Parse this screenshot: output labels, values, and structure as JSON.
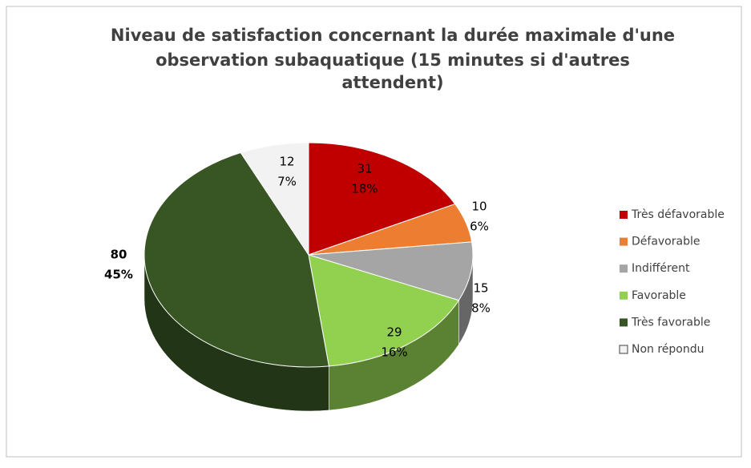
{
  "chart_data": {
    "type": "pie3d",
    "title": [
      "Niveau de satisfaction concernant la durée maximale d'une",
      "observation subaquatique (15 minutes si d'autres",
      "attendent)"
    ],
    "categories": [
      "Très défavorable",
      "Défavorable",
      "Indifférent",
      "Favorable",
      "Très favorable",
      "Non répondu"
    ],
    "values": [
      31,
      10,
      15,
      29,
      80,
      12
    ],
    "percentages": [
      18,
      6,
      8,
      16,
      45,
      7
    ],
    "percentage_labels": [
      "18%",
      "6%",
      "8%",
      "16%",
      "45%",
      "7%"
    ],
    "colors": [
      "#c00000",
      "#ed7d31",
      "#a5a5a5",
      "#92d050",
      "#375623",
      "#f2f2f2"
    ],
    "legend": "right"
  }
}
